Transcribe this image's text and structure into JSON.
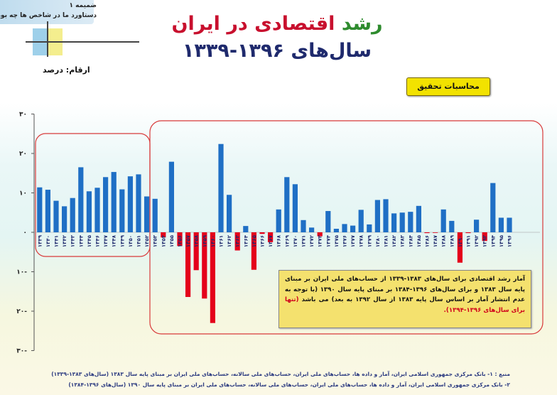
{
  "header": {
    "annex": "ضمیمه ۱",
    "annex_subtitle": "دستاورد ما در شاخص ها چه بوده",
    "title_green": "رشد",
    "title_red": "اقتصادی در ایران",
    "subtitle": "سال‌های ۱۳۹۶-۱۳۳۹",
    "units": "ارقام: درصد",
    "calc_button": "محاسبات تحقیق"
  },
  "note": {
    "text": "آمار رشد اقتصادی برای سال‌های ۱۳۸۳-۱۳۳۹ از حساب‌های ملی ایران بر مبنای پایه سال ۱۳۸۳ و برای سال‌های ۱۳۹۶-۱۳۸۴ بر مبنای پایه سال ۱۳۹۰ (با توجه به عدم انتشار آمار بر اساس سال پایه ۱۳۸۳ از سال ۱۳۹۲ به بعد) می باشد",
    "highlight": "(تنها برای سال‌های ۱۳۹۶-۱۳۹۴).",
    "highlight_color": "#d0021b"
  },
  "sources": {
    "line1": "منبع : ۱- بانک مرکزی جمهوری اسلامی ایران، آمار و داده ها، حساب‌های ملی ایران، حساب‌های ملی سالانه، حساب‌های ملی ایران بر مبنای پایه سال ۱۳۸۳ (سال‌های ۱۳۸۳-۱۳۳۹)",
    "line2": "۲- بانک مرکزی جمهوری اسلامی ایران، آمار و داده ها، حساب‌های ملی ایران، حساب‌های ملی سالانه، حساب‌های ملی ایران بر مبنای پایه سال ۱۳۹۰ (سال‌های ۱۳۹۶-۱۳۸۴)"
  },
  "chart_data": {
    "type": "bar",
    "ylim": [
      -30,
      30
    ],
    "yticks": [
      "۳۰",
      "۲۰",
      "۱۰",
      "۰",
      "۱۰-",
      "۲۰-",
      "۳۰-"
    ],
    "ytick_values": [
      30,
      20,
      10,
      0,
      -10,
      -20,
      -30
    ],
    "positive_color": "#1f6fc5",
    "negative_color": "#e4001b",
    "highlight_border_color": "#d83a3a",
    "categories": [
      "۱۳۳۹",
      "۱۳۴۰",
      "۱۳۴۱",
      "۱۳۴۲",
      "۱۳۴۳",
      "۱۳۴۴",
      "۱۳۴۵",
      "۱۳۴۶",
      "۱۳۴۷",
      "۱۳۴۸",
      "۱۳۴۹",
      "۱۳۵۰",
      "۱۳۵۱",
      "۱۳۵۲",
      "۱۳۵۳",
      "۱۳۵۴",
      "۱۳۵۵",
      "۱۳۵۶",
      "۱۳۵۷",
      "۱۳۵۸",
      "۱۳۵۹",
      "۱۳۶۰",
      "۱۳۶۱",
      "۱۳۶۲",
      "۱۳۶۳",
      "۱۳۶۴",
      "۱۳۶۵",
      "۱۳۶۶",
      "۱۳۶۷",
      "۱۳۶۸",
      "۱۳۶۹",
      "۱۳۷۰",
      "۱۳۷۱",
      "۱۳۷۲",
      "۱۳۷۳",
      "۱۳۷۴",
      "۱۳۷۵",
      "۱۳۷۶",
      "۱۳۷۷",
      "۱۳۷۸",
      "۱۳۷۹",
      "۱۳۸۰",
      "۱۳۸۱",
      "۱۳۸۲",
      "۱۳۸۳",
      "۱۳۸۴",
      "۱۳۸۵",
      "۱۳۸۶",
      "۱۳۸۷",
      "۱۳۸۸",
      "۱۳۸۹",
      "۱۳۹۰",
      "۱۳۹۱",
      "۱۳۹۲",
      "۱۳۹۳",
      "۱۳۹۴",
      "۱۳۹۵",
      "۱۳۹۶"
    ],
    "values": [
      11.4,
      10.8,
      8.0,
      6.6,
      8.7,
      16.5,
      10.4,
      11.3,
      14.0,
      15.3,
      10.9,
      14.2,
      14.7,
      9.1,
      8.5,
      -1.3,
      17.9,
      -3.5,
      -16.4,
      -9.6,
      -16.8,
      -23.0,
      22.4,
      9.5,
      -4.6,
      1.6,
      -9.5,
      -0.4,
      -2.5,
      5.8,
      14.0,
      12.2,
      3.1,
      1.2,
      -1.0,
      5.4,
      0.9,
      2.1,
      1.7,
      5.7,
      2.0,
      8.2,
      8.4,
      4.8,
      5.0,
      5.2,
      6.7,
      -0.2,
      -0.1,
      5.8,
      2.9,
      -7.7,
      -0.2,
      3.2,
      -2.2,
      12.5,
      3.7,
      3.7
    ]
  }
}
